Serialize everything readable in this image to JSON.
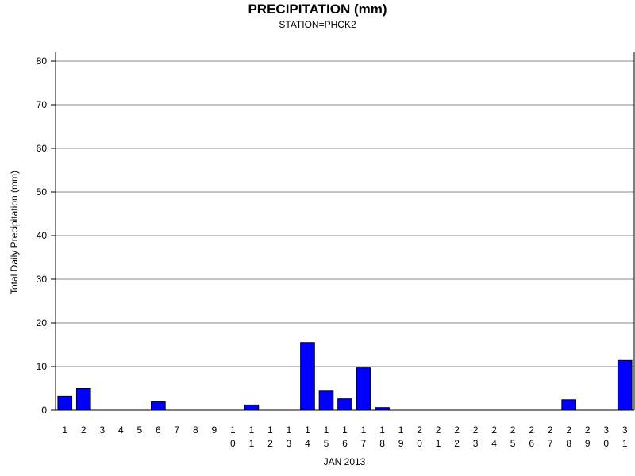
{
  "chart_data": {
    "type": "bar",
    "title": "PRECIPITATION (mm)",
    "subtitle": "STATION=PHCK2",
    "xlabel": "JAN 2013",
    "ylabel": "Total Daily Precipitation (mm)",
    "ylim": [
      0,
      80
    ],
    "yticks": [
      "0",
      "10",
      "20",
      "30",
      "40",
      "50",
      "60",
      "70",
      "80"
    ],
    "grid": true,
    "categories": [
      "1",
      "2",
      "3",
      "4",
      "5",
      "6",
      "7",
      "8",
      "9",
      "10",
      "11",
      "12",
      "13",
      "14",
      "15",
      "16",
      "17",
      "18",
      "19",
      "20",
      "21",
      "22",
      "23",
      "24",
      "25",
      "26",
      "27",
      "28",
      "29",
      "30",
      "31"
    ],
    "values": [
      3.2,
      5.0,
      0,
      0,
      0,
      1.9,
      0,
      0,
      0,
      0,
      1.2,
      0,
      0,
      15.5,
      4.4,
      2.6,
      9.7,
      0.6,
      0,
      0,
      0,
      0,
      0,
      0,
      0,
      0,
      0,
      2.4,
      0,
      0,
      11.4
    ],
    "bar_color": "#0000ff"
  }
}
